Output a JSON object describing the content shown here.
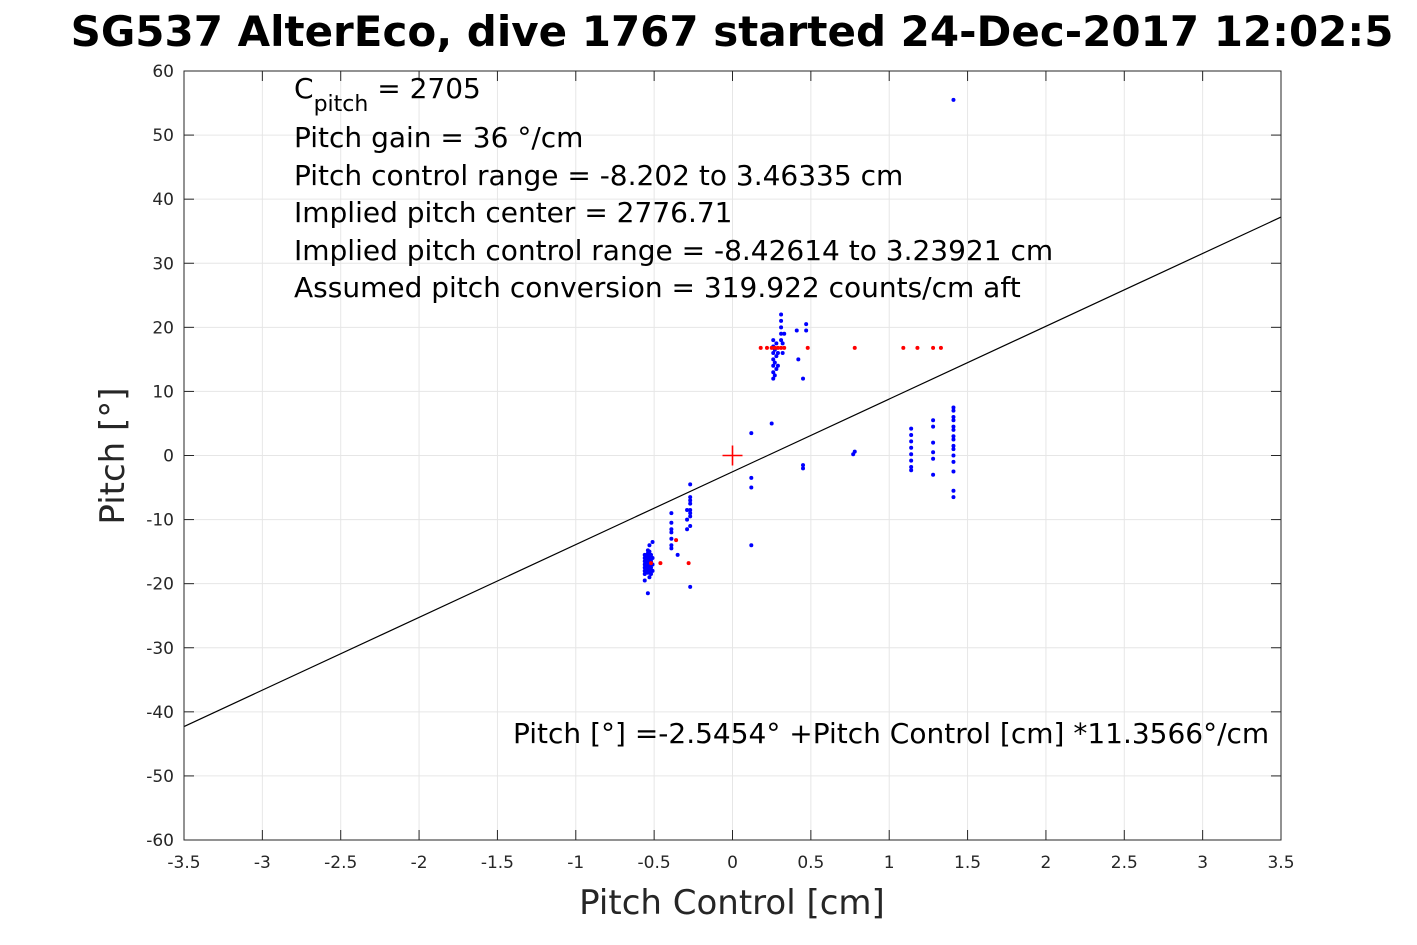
{
  "chart_data": {
    "type": "scatter",
    "title": "SG537 AlterEco, dive 1767 started 24-Dec-2017 12:02:5",
    "xlabel": "Pitch Control [cm]",
    "ylabel": "Pitch [°]",
    "xlim": [
      -3.5,
      3.5
    ],
    "ylim": [
      -60,
      60
    ],
    "xticks": [
      -3.5,
      -3,
      -2.5,
      -2,
      -1.5,
      -1,
      -0.5,
      0,
      0.5,
      1,
      1.5,
      2,
      2.5,
      3,
      3.5
    ],
    "xtick_labels": [
      "-3.5",
      "-3",
      "-2.5",
      "-2",
      "-1.5",
      "-1",
      "-0.5",
      "0",
      "0.5",
      "1",
      "1.5",
      "2",
      "2.5",
      "3",
      "3.5"
    ],
    "yticks": [
      -60,
      -50,
      -40,
      -30,
      -20,
      -10,
      0,
      10,
      20,
      30,
      40,
      50,
      60
    ],
    "ytick_labels": [
      "-60",
      "-50",
      "-40",
      "-30",
      "-20",
      "-10",
      "0",
      "10",
      "20",
      "30",
      "40",
      "50",
      "60"
    ],
    "grid": true,
    "annotations": {
      "cpitch_base": "C",
      "cpitch_sub": "pitch",
      "cpitch_value": " = 2705",
      "lines": [
        "Pitch gain = 36 °/cm",
        "Pitch control range = -8.202 to 3.46335 cm",
        "Implied pitch center = 2776.71",
        "Implied pitch control range = -8.42614 to 3.23921 cm",
        "Assumed pitch conversion = 319.922 counts/cm aft"
      ],
      "fit_text": "Pitch [°] =-2.5454° +Pitch Control [cm] *11.3566°/cm"
    },
    "series": [
      {
        "color": "#0000ff",
        "marker": "dot",
        "points": [
          [
            -0.56,
            -15.5
          ],
          [
            -0.56,
            -16.0
          ],
          [
            -0.56,
            -16.5
          ],
          [
            -0.56,
            -17.0
          ],
          [
            -0.56,
            -17.5
          ],
          [
            -0.56,
            -18.0
          ],
          [
            -0.56,
            -18.5
          ],
          [
            -0.56,
            -19.5
          ],
          [
            -0.54,
            -14.8
          ],
          [
            -0.54,
            -15.3
          ],
          [
            -0.54,
            -15.8
          ],
          [
            -0.54,
            -16.3
          ],
          [
            -0.54,
            -16.8
          ],
          [
            -0.54,
            -17.3
          ],
          [
            -0.54,
            -17.8
          ],
          [
            -0.54,
            -18.3
          ],
          [
            -0.54,
            -21.5
          ],
          [
            -0.53,
            -14.0
          ],
          [
            -0.53,
            -15.0
          ],
          [
            -0.53,
            -16.0
          ],
          [
            -0.53,
            -17.0
          ],
          [
            -0.53,
            -18.0
          ],
          [
            -0.53,
            -19.0
          ],
          [
            -0.52,
            -15.5
          ],
          [
            -0.52,
            -16.5
          ],
          [
            -0.52,
            -17.5
          ],
          [
            -0.52,
            -18.5
          ],
          [
            -0.51,
            -13.5
          ],
          [
            -0.51,
            -16.0
          ],
          [
            -0.51,
            -17.0
          ],
          [
            -0.51,
            -18.0
          ],
          [
            -0.39,
            -9.0
          ],
          [
            -0.39,
            -10.5
          ],
          [
            -0.39,
            -11.5
          ],
          [
            -0.39,
            -12.0
          ],
          [
            -0.39,
            -13.0
          ],
          [
            -0.39,
            -14.0
          ],
          [
            -0.39,
            -14.5
          ],
          [
            -0.35,
            -15.5
          ],
          [
            -0.29,
            -8.5
          ],
          [
            -0.29,
            -10.0
          ],
          [
            -0.29,
            -11.5
          ],
          [
            -0.27,
            -4.5
          ],
          [
            -0.27,
            -6.5
          ],
          [
            -0.27,
            -7.0
          ],
          [
            -0.27,
            -7.5
          ],
          [
            -0.27,
            -8.5
          ],
          [
            -0.27,
            -9.0
          ],
          [
            -0.27,
            -9.5
          ],
          [
            -0.27,
            -11.0
          ],
          [
            -0.27,
            -20.5
          ],
          [
            0.12,
            3.5
          ],
          [
            0.12,
            -3.5
          ],
          [
            0.12,
            -5.0
          ],
          [
            0.12,
            -14.0
          ],
          [
            0.25,
            5.0
          ],
          [
            0.26,
            12.0
          ],
          [
            0.26,
            13.0
          ],
          [
            0.26,
            14.0
          ],
          [
            0.26,
            15.0
          ],
          [
            0.26,
            16.0
          ],
          [
            0.26,
            17.0
          ],
          [
            0.26,
            18.0
          ],
          [
            0.27,
            12.5
          ],
          [
            0.27,
            14.5
          ],
          [
            0.27,
            16.5
          ],
          [
            0.28,
            13.5
          ],
          [
            0.28,
            15.5
          ],
          [
            0.28,
            17.5
          ],
          [
            0.29,
            14.0
          ],
          [
            0.29,
            16.0
          ],
          [
            0.31,
            22.0
          ],
          [
            0.31,
            21.0
          ],
          [
            0.31,
            20.0
          ],
          [
            0.31,
            19.0
          ],
          [
            0.31,
            18.0
          ],
          [
            0.32,
            16.0
          ],
          [
            0.32,
            17.5
          ],
          [
            0.33,
            19.0
          ],
          [
            0.41,
            19.5
          ],
          [
            0.42,
            15.0
          ],
          [
            0.45,
            12.0
          ],
          [
            0.45,
            -1.5
          ],
          [
            0.45,
            -2.0
          ],
          [
            0.47,
            20.5
          ],
          [
            0.47,
            19.5
          ],
          [
            0.77,
            0.2
          ],
          [
            0.78,
            0.6
          ],
          [
            1.41,
            55.5
          ],
          [
            1.14,
            4.2
          ],
          [
            1.14,
            3.2
          ],
          [
            1.14,
            2.2
          ],
          [
            1.14,
            1.2
          ],
          [
            1.14,
            0.2
          ],
          [
            1.14,
            -0.8
          ],
          [
            1.14,
            -1.8
          ],
          [
            1.14,
            -2.3
          ],
          [
            1.28,
            5.5
          ],
          [
            1.28,
            4.5
          ],
          [
            1.28,
            2.0
          ],
          [
            1.28,
            0.5
          ],
          [
            1.28,
            -0.5
          ],
          [
            1.28,
            -3.0
          ],
          [
            1.41,
            7.5
          ],
          [
            1.41,
            7.0
          ],
          [
            1.41,
            6.0
          ],
          [
            1.41,
            5.5
          ],
          [
            1.41,
            4.5
          ],
          [
            1.41,
            4.0
          ],
          [
            1.41,
            3.0
          ],
          [
            1.41,
            2.5
          ],
          [
            1.41,
            1.5
          ],
          [
            1.41,
            1.0
          ],
          [
            1.41,
            0.0
          ],
          [
            1.41,
            -1.0
          ],
          [
            1.41,
            -2.5
          ],
          [
            1.41,
            -5.5
          ],
          [
            1.41,
            -6.5
          ]
        ]
      },
      {
        "color": "#ff0000",
        "marker": "dot",
        "points": [
          [
            -0.52,
            -16.8
          ],
          [
            -0.46,
            -16.8
          ],
          [
            -0.36,
            -13.2
          ],
          [
            -0.28,
            -16.8
          ],
          [
            0.18,
            16.8
          ],
          [
            0.22,
            16.8
          ],
          [
            0.25,
            16.8
          ],
          [
            0.27,
            16.8
          ],
          [
            0.29,
            16.8
          ],
          [
            0.31,
            16.8
          ],
          [
            0.33,
            16.8
          ],
          [
            0.48,
            16.8
          ],
          [
            0.78,
            16.8
          ],
          [
            1.09,
            16.8
          ],
          [
            1.18,
            16.8
          ],
          [
            1.28,
            16.8
          ],
          [
            1.33,
            16.8
          ]
        ]
      }
    ],
    "center_marker": {
      "x": 0,
      "y": 0,
      "color": "#ff0000",
      "marker": "+"
    },
    "fit_line": {
      "intercept": -2.5454,
      "slope": 11.3566,
      "color": "#000000"
    }
  }
}
